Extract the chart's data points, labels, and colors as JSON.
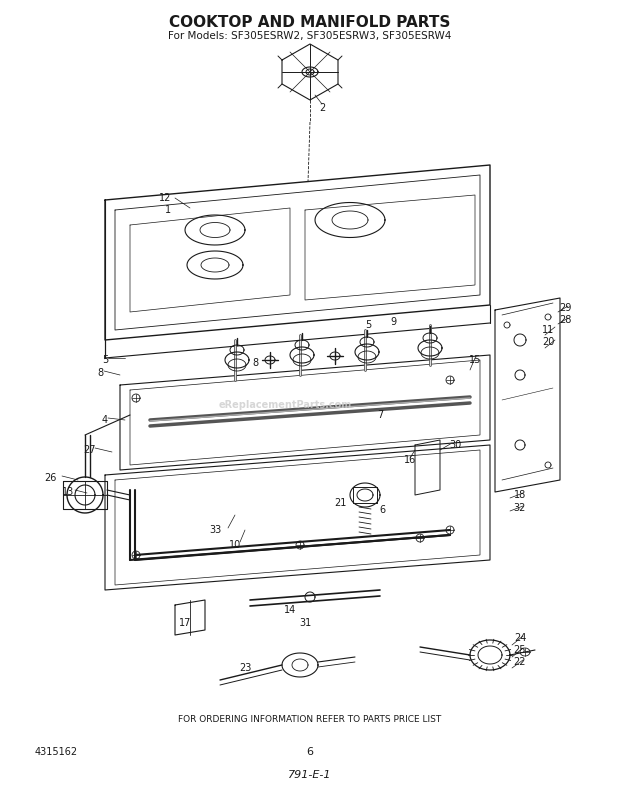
{
  "title": "COOKTOP AND MANIFOLD PARTS",
  "subtitle": "For Models: SF305ESRW2, SF305ESRW3, SF305ESRW4",
  "footer_text": "FOR ORDERING INFORMATION REFER TO PARTS PRICE LIST",
  "left_label": "4315162",
  "center_label": "6",
  "bottom_label": "791-E-1",
  "bg_color": "#ffffff",
  "title_fontsize": 11,
  "subtitle_fontsize": 7.5,
  "fig_width": 6.2,
  "fig_height": 7.9,
  "watermark": "eReplacementParts.com",
  "lc": "#1a1a1a"
}
